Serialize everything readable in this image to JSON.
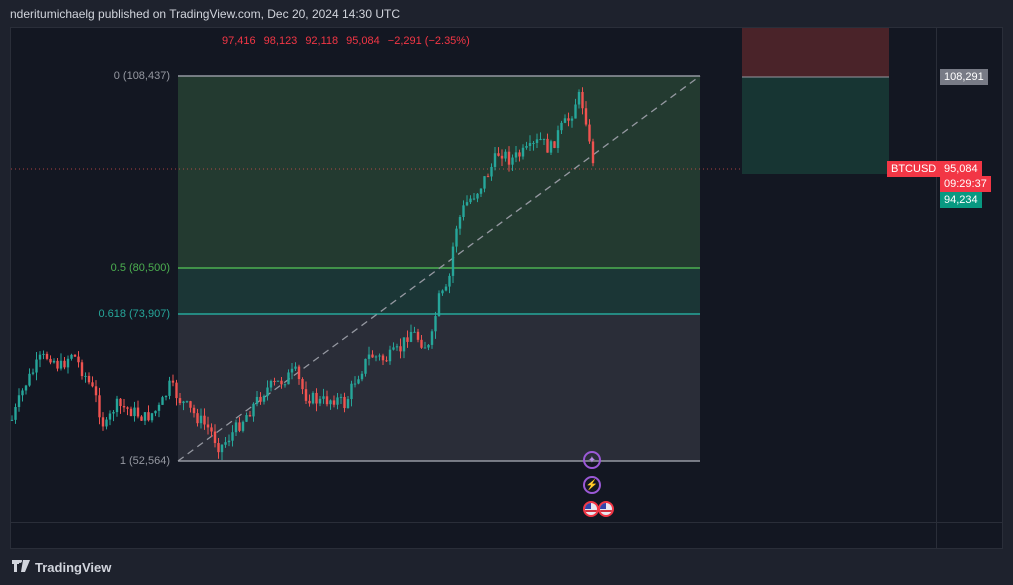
{
  "header": {
    "published": "nderitumichaelg published on TradingView.com, Dec 20, 2024 14:30 UTC"
  },
  "ohlc": {
    "open": "97,416",
    "high": "98,123",
    "low": "92,118",
    "close": "95,084",
    "change": "−2,291 (−2.35%)"
  },
  "fib": {
    "level_0": "0 (108,437)",
    "level_05": "0.5 (80,500)",
    "level_0618": "0.618 (73,907)",
    "level_1": "1 (52,564)"
  },
  "price_scale": {
    "top_label": "108,291",
    "symbol": "BTCUSD",
    "last_price": "95,084",
    "countdown": "09:29:37",
    "target": "94,234"
  },
  "footer": {
    "brand": "TradingView"
  },
  "colors": {
    "up": "#26a69a",
    "down": "#ef5350",
    "fib_top": "#234034",
    "fib_mid": "#1d3a37",
    "fib_bottom": "#2a2d38"
  }
}
